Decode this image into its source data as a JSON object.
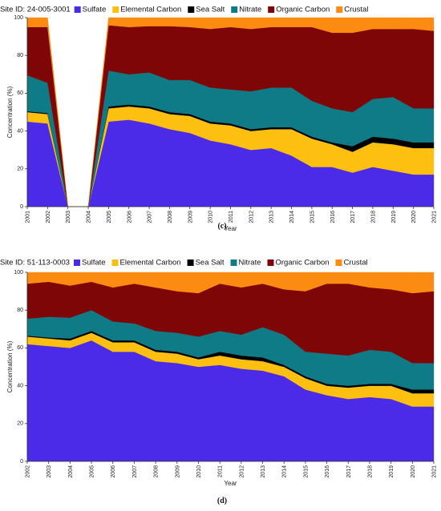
{
  "chart_data": [
    {
      "type": "area",
      "stacked": true,
      "site_label": "Site ID: 24-005-3001",
      "caption": "(c)",
      "xlabel": "Year",
      "ylabel": "Concentration (%)",
      "ylim": [
        0,
        100
      ],
      "yticks": [
        0,
        20,
        40,
        60,
        80,
        100
      ],
      "grid": false,
      "legend_position": "top",
      "x": [
        "2001",
        "2002",
        "2003",
        "2004",
        "2005",
        "2006",
        "2007",
        "2008",
        "2009",
        "2010",
        "2011",
        "2012",
        "2013",
        "2014",
        "2015",
        "2016",
        "2017",
        "2018",
        "2019",
        "2020",
        "2021"
      ],
      "series": [
        {
          "name": "Sulfate",
          "color": "#4b2be8",
          "values": [
            45,
            44,
            0,
            0,
            45,
            46,
            44,
            41,
            39,
            35,
            33,
            30,
            31,
            27,
            21,
            21,
            18,
            21,
            19,
            17,
            17
          ]
        },
        {
          "name": "Elemental Carbon",
          "color": "#fdc010",
          "values": [
            5,
            5,
            0,
            0,
            7,
            7,
            8,
            8,
            9,
            9,
            10,
            10,
            10,
            14,
            15,
            12,
            11,
            13,
            14,
            14,
            14
          ]
        },
        {
          "name": "Sea Salt",
          "color": "#000000",
          "values": [
            0.5,
            0.5,
            0,
            0,
            1,
            1,
            1,
            1,
            1,
            1,
            1,
            1,
            1,
            1,
            1,
            1,
            3,
            3,
            3,
            3,
            3
          ]
        },
        {
          "name": "Nitrate",
          "color": "#0f7b86",
          "values": [
            19,
            16,
            0,
            0,
            19,
            16,
            18,
            17,
            18,
            18,
            18,
            20,
            21,
            21,
            19,
            18,
            18,
            20,
            22,
            18,
            18
          ]
        },
        {
          "name": "Organic Carbon",
          "color": "#7e0606",
          "values": [
            25.5,
            29.5,
            0,
            0,
            24,
            25,
            24.5,
            28.5,
            28,
            31,
            33,
            33,
            32,
            32,
            39,
            40,
            42,
            37,
            36,
            42,
            41
          ]
        },
        {
          "name": "Crustal",
          "color": "#fb8c11",
          "values": [
            5,
            5,
            0,
            0,
            4,
            5,
            4.5,
            4.5,
            5,
            6,
            5,
            6,
            5,
            5,
            5,
            8,
            8,
            6,
            6,
            6,
            7
          ]
        }
      ]
    },
    {
      "type": "area",
      "stacked": true,
      "site_label": "Site ID: 51-113-0003",
      "caption": "(d)",
      "xlabel": "Year",
      "ylabel": "Concentration (%)",
      "ylim": [
        0,
        100
      ],
      "yticks": [
        0,
        20,
        40,
        60,
        80,
        100
      ],
      "grid": false,
      "legend_position": "top",
      "x": [
        "2002",
        "2003",
        "2004",
        "2005",
        "2006",
        "2007",
        "2008",
        "2009",
        "2010",
        "2011",
        "2012",
        "2013",
        "2014",
        "2015",
        "2016",
        "2017",
        "2018",
        "2019",
        "2020",
        "2021"
      ],
      "series": [
        {
          "name": "Sulfate",
          "color": "#4b2be8",
          "values": [
            62,
            61,
            60,
            64,
            58,
            58,
            53,
            52,
            50,
            51,
            49,
            48,
            45,
            38,
            35,
            33,
            34,
            33,
            29,
            29
          ]
        },
        {
          "name": "Elemental Carbon",
          "color": "#fdc010",
          "values": [
            4,
            4,
            4,
            4,
            5,
            5,
            5,
            5,
            4,
            5,
            5,
            5,
            5,
            6,
            5,
            6,
            6,
            7,
            7,
            7
          ]
        },
        {
          "name": "Sea Salt",
          "color": "#000000",
          "values": [
            0.5,
            0.5,
            1,
            1,
            1,
            1,
            1,
            1,
            1,
            2,
            2,
            2,
            1,
            1,
            1,
            1,
            1,
            1,
            2,
            2
          ]
        },
        {
          "name": "Nitrate",
          "color": "#0f7b86",
          "values": [
            9,
            11,
            11,
            11,
            10,
            9,
            10,
            10,
            11,
            11,
            11,
            16,
            16,
            13,
            16,
            16,
            18,
            17,
            14,
            14
          ]
        },
        {
          "name": "Organic Carbon",
          "color": "#7e0606",
          "values": [
            18.5,
            18.5,
            17,
            15,
            18,
            21,
            23,
            22,
            23,
            25,
            25,
            23,
            24,
            32,
            37,
            38,
            33,
            33,
            37,
            38
          ]
        },
        {
          "name": "Crustal",
          "color": "#fb8c11",
          "values": [
            6,
            5,
            7,
            5,
            8,
            6,
            8,
            10,
            11,
            6,
            8,
            6,
            9,
            10,
            6,
            6,
            8,
            9,
            11,
            10
          ]
        }
      ]
    }
  ]
}
